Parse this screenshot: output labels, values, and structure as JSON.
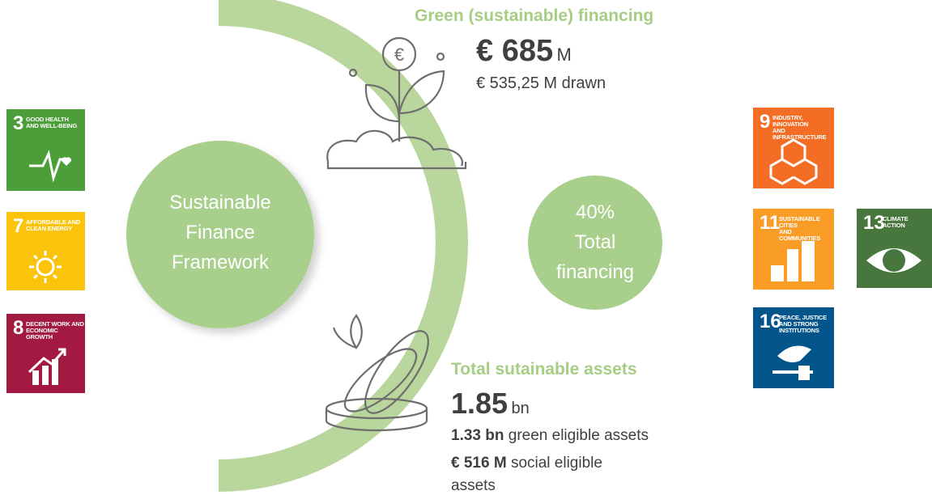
{
  "framework": {
    "lines": [
      "Sustainable",
      "Finance",
      "Framework"
    ]
  },
  "share": {
    "lines": [
      "40%",
      "Total",
      "financing"
    ]
  },
  "green_financing": {
    "title": "Green (sustainable) financing",
    "amount": "€ 685",
    "unit": "M",
    "drawn": "€ 535,25 M drawn"
  },
  "sustainable_assets": {
    "title": "Total sutainable assets",
    "amount": "1.85",
    "unit": "bn",
    "green": {
      "amount": "1.33 bn",
      "text": "green eligible assets"
    },
    "social": {
      "amount": "€ 516 M",
      "text": "social eligible",
      "text2": "assets"
    }
  },
  "sdgs": [
    {
      "number": "3",
      "label": [
        "GOOD HEALTH",
        "AND WELL-BEING"
      ],
      "color": "#4c9f38"
    },
    {
      "number": "7",
      "label": [
        "AFFORDABLE AND",
        "CLEAN ENERGY"
      ],
      "color": "#fcc30b"
    },
    {
      "number": "8",
      "label": [
        "DECENT WORK AND",
        "ECONOMIC GROWTH"
      ],
      "color": "#a21942"
    },
    {
      "number": "9",
      "label": [
        "INDUSTRY, INNOVATION",
        "AND INFRASTRUCTURE"
      ],
      "color": "#f36d25"
    },
    {
      "number": "11",
      "label": [
        "SUSTAINABLE CITIES",
        "AND COMMUNITIES"
      ],
      "color": "#f99d26"
    },
    {
      "number": "13",
      "label": [
        "CLIMATE",
        "ACTION"
      ],
      "color": "#48773e"
    },
    {
      "number": "16",
      "label": [
        "PEACE, JUSTICE",
        "AND STRONG",
        "INSTITUTIONS"
      ],
      "color": "#02558b"
    }
  ]
}
